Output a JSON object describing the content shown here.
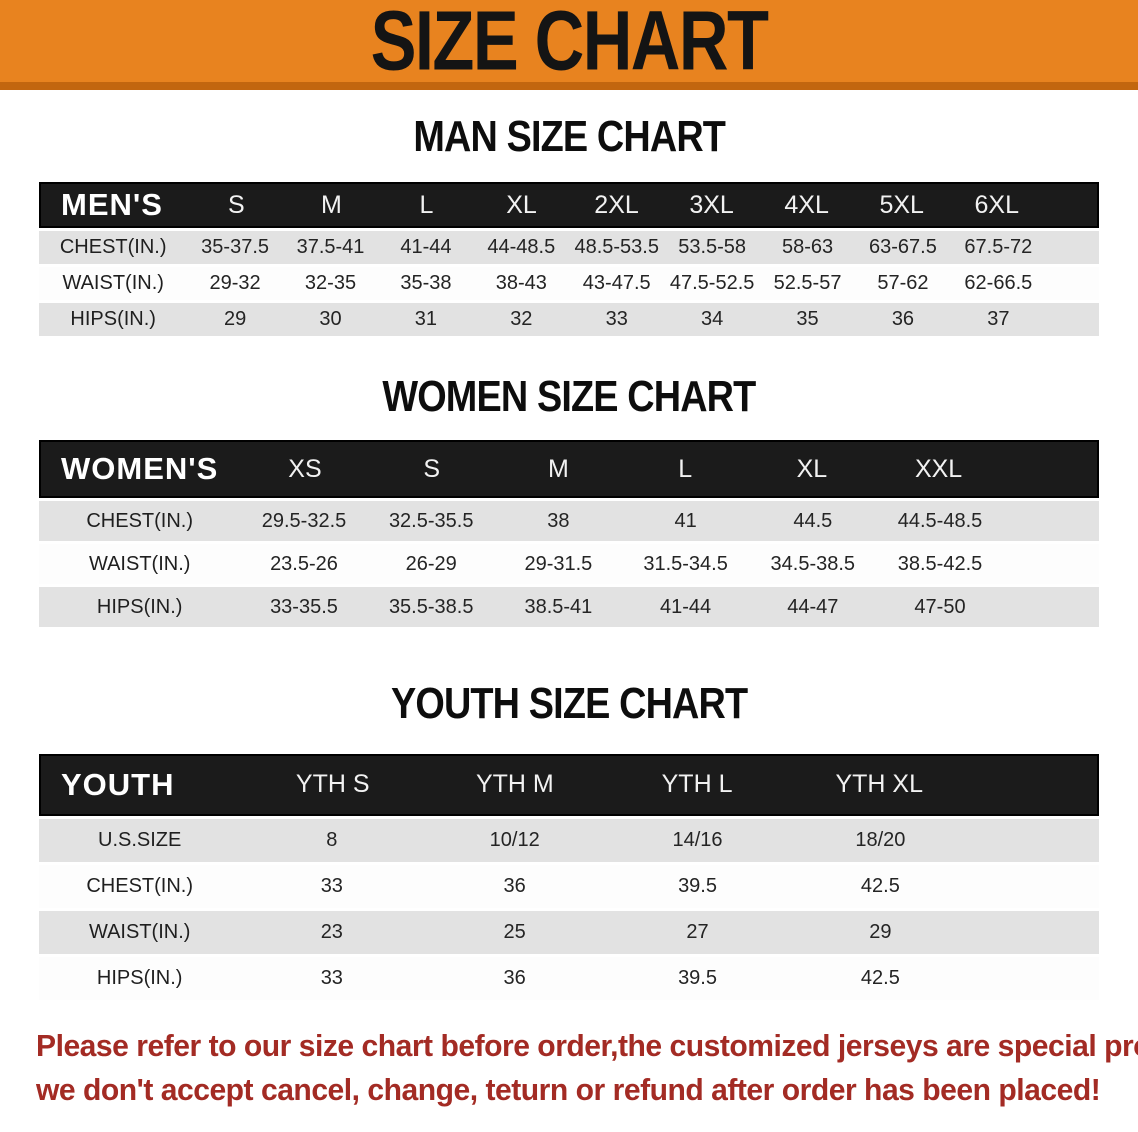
{
  "banner": {
    "title": "SIZE CHART",
    "bg_color": "#E8831F",
    "edge_color": "#C2660F",
    "text_color": "#141414"
  },
  "sections": [
    {
      "heading": "MAN SIZE CHART",
      "label": "MEN'S",
      "columns": [
        "S",
        "M",
        "L",
        "XL",
        "2XL",
        "3XL",
        "4XL",
        "5XL",
        "6XL"
      ],
      "rows": [
        {
          "label": "CHEST(IN.)",
          "values": [
            "35-37.5",
            "37.5-41",
            "41-44",
            "44-48.5",
            "48.5-53.5",
            "53.5-58",
            "58-63",
            "63-67.5",
            "67.5-72"
          ]
        },
        {
          "label": "WAIST(IN.)",
          "values": [
            "29-32",
            "32-35",
            "35-38",
            "38-43",
            "43-47.5",
            "47.5-52.5",
            "52.5-57",
            "57-62",
            "62-66.5"
          ]
        },
        {
          "label": "HIPS(IN.)",
          "values": [
            "29",
            "30",
            "31",
            "32",
            "33",
            "34",
            "35",
            "36",
            "37"
          ]
        }
      ]
    },
    {
      "heading": "WOMEN SIZE CHART",
      "label": "WOMEN'S",
      "columns": [
        "XS",
        "S",
        "M",
        "L",
        "XL",
        "XXL"
      ],
      "rows": [
        {
          "label": "CHEST(IN.)",
          "values": [
            "29.5-32.5",
            "32.5-35.5",
            "38",
            "41",
            "44.5",
            "44.5-48.5"
          ]
        },
        {
          "label": "WAIST(IN.)",
          "values": [
            "23.5-26",
            "26-29",
            "29-31.5",
            "31.5-34.5",
            "34.5-38.5",
            "38.5-42.5"
          ]
        },
        {
          "label": "HIPS(IN.)",
          "values": [
            "33-35.5",
            "35.5-38.5",
            "38.5-41",
            "41-44",
            "44-47",
            "47-50"
          ]
        }
      ]
    },
    {
      "heading": "YOUTH SIZE CHART",
      "label": "YOUTH",
      "columns": [
        "YTH S",
        "YTH M",
        "YTH L",
        "YTH XL"
      ],
      "rows": [
        {
          "label": "U.S.SIZE",
          "values": [
            "8",
            "10/12",
            "14/16",
            "18/20"
          ]
        },
        {
          "label": "CHEST(IN.)",
          "values": [
            "33",
            "36",
            "39.5",
            "42.5"
          ]
        },
        {
          "label": "WAIST(IN.)",
          "values": [
            "23",
            "25",
            "27",
            "29"
          ]
        },
        {
          "label": "HIPS(IN.)",
          "values": [
            "33",
            "36",
            "39.5",
            "42.5"
          ]
        }
      ]
    }
  ],
  "table_colors": {
    "header_bg": "#1B1B1B",
    "row_gray": "#E2E2E2",
    "row_white": "#FDFDFD"
  },
  "disclaimer": {
    "line1": "Please refer to our size chart before order,the customized jerseys are special products,",
    "line2": "we don't accept cancel, change, teturn or refund after order has been placed!",
    "color": "#A32B24"
  }
}
